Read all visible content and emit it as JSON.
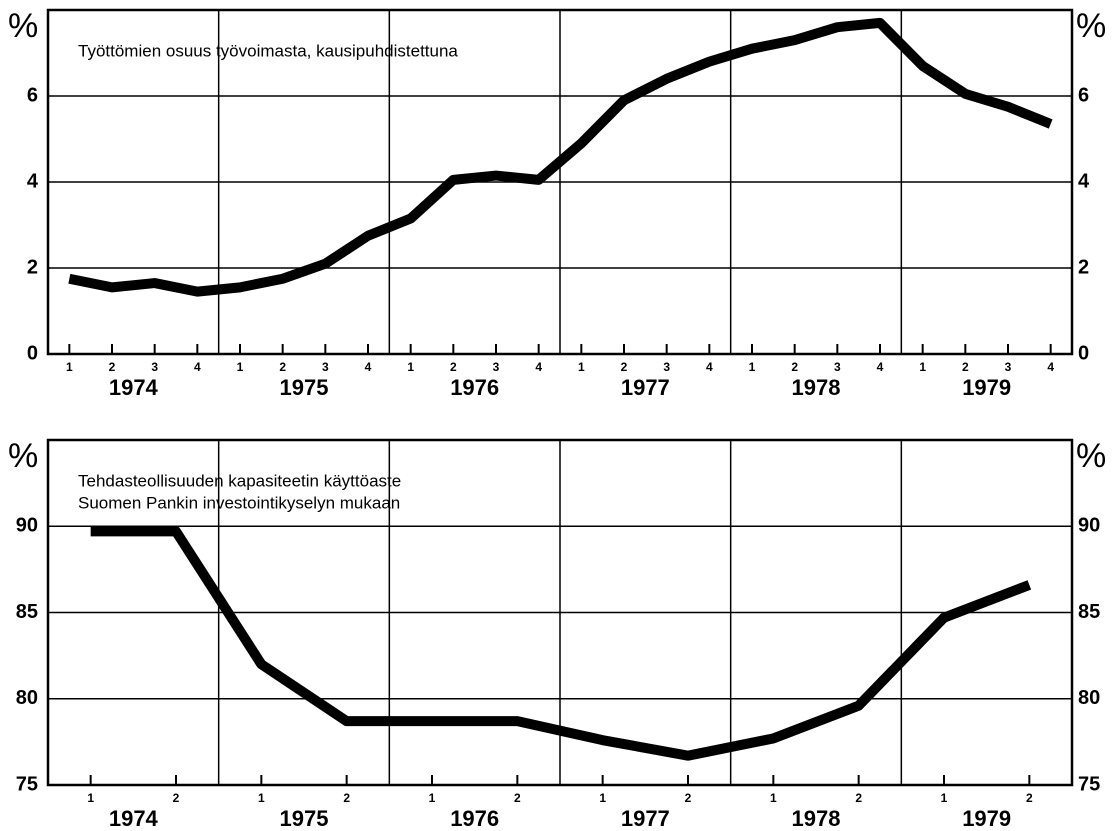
{
  "chart_data": [
    {
      "type": "line",
      "title": [
        "Työttömien osuus työvoimasta, kausipuhdistettuna"
      ],
      "y_unit": "%",
      "categories": [
        "1",
        "2",
        "3",
        "4",
        "1",
        "2",
        "3",
        "4",
        "1",
        "2",
        "3",
        "4",
        "1",
        "2",
        "3",
        "4",
        "1",
        "2",
        "3",
        "4",
        "1",
        "2",
        "3",
        "4"
      ],
      "years": [
        "1974",
        "1975",
        "1976",
        "1977",
        "1978",
        "1979"
      ],
      "series": [
        {
          "color": "#000000",
          "values": [
            1.75,
            1.55,
            1.65,
            1.45,
            1.55,
            1.75,
            2.1,
            2.75,
            3.15,
            4.05,
            4.15,
            4.05,
            4.9,
            5.9,
            6.4,
            6.8,
            7.1,
            7.3,
            7.6,
            7.7,
            6.7,
            6.05,
            5.75,
            5.35
          ]
        }
      ],
      "ylim": [
        0,
        8
      ],
      "yticks": [
        0,
        2,
        4,
        6
      ],
      "grid": true
    },
    {
      "type": "line",
      "title": [
        "Tehdasteollisuuden kapasiteetin käyttöaste",
        "Suomen Pankin investointikyselyn mukaan"
      ],
      "y_unit": "%",
      "categories": [
        "1",
        "2",
        "1",
        "2",
        "1",
        "2",
        "1",
        "2",
        "1",
        "2",
        "1",
        "2"
      ],
      "years": [
        "1974",
        "1975",
        "1976",
        "1977",
        "1978",
        "1979"
      ],
      "series": [
        {
          "color": "#000000",
          "values": [
            89.7,
            89.7,
            82.0,
            78.7,
            78.7,
            78.7,
            77.6,
            76.7,
            77.7,
            79.6,
            84.7,
            86.6
          ]
        }
      ],
      "ylim": [
        75,
        95
      ],
      "yticks": [
        75,
        80,
        85,
        90
      ],
      "grid": true
    }
  ]
}
